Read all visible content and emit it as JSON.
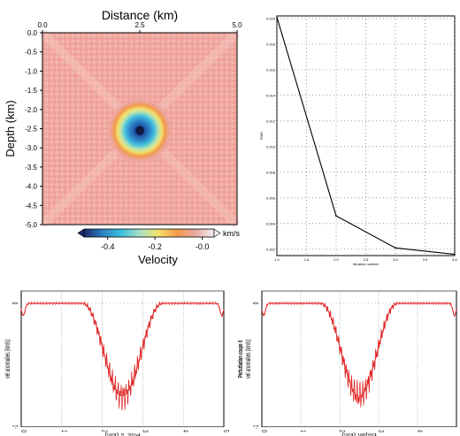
{
  "chart_data": [
    {
      "type": "heatmap",
      "title": "Distance (km)",
      "xlabel": "Distance (km)",
      "ylabel": "Depth (km)",
      "xlim": [
        0,
        5
      ],
      "ylim": [
        0,
        -5
      ],
      "x_ticks": [
        "0.0",
        "2.5",
        "5.0"
      ],
      "y_ticks": [
        "0.0",
        "-0.5",
        "-1.0",
        "-1.5",
        "-2.0",
        "-2.5",
        "-3.0",
        "-3.5",
        "-4.0",
        "-4.5",
        "-5.0"
      ],
      "anomaly_center": [
        2.5,
        -2.55
      ],
      "anomaly_min": -0.45,
      "colorbar": {
        "label": "Velocity",
        "unit": "km/s",
        "ticks": [
          "-0.4",
          "-0.2",
          "-0.0"
        ],
        "range": [
          -0.5,
          0.05
        ],
        "colors": [
          "#1a2a6c",
          "#2d7fc1",
          "#3cc0e0",
          "#a6e0c8",
          "#f5e26a",
          "#f59a4a",
          "#e8a8a0",
          "#f2f0f5"
        ]
      },
      "background_value": -0.02
    },
    {
      "type": "line",
      "xlabel": "Iteration number",
      "ylabel": "RMS",
      "xlim": [
        1,
        4
      ],
      "ylim": [
        0.0015,
        0.0202
      ],
      "x_ticks": [
        "1.0",
        "1.5",
        "2.0",
        "2.5",
        "3.0",
        "3.5",
        "4.0"
      ],
      "y_ticks": [
        "0.002",
        "0.004",
        "0.006",
        "0.008",
        "0.010",
        "0.012",
        "0.014",
        "0.016",
        "0.018",
        "0.020"
      ],
      "x": [
        1,
        2,
        3,
        4
      ],
      "y": [
        0.0201,
        0.0046,
        0.0021,
        0.0016
      ],
      "grid": true
    },
    {
      "type": "line",
      "xlabel": "Pos. x (km)",
      "ylabel": "vel anomalies (km/s)",
      "xlim": [
        0,
        5
      ],
      "ylim": [
        -1,
        0.1
      ],
      "x_ticks": [
        "0",
        "1",
        "2",
        "3",
        "4",
        "5"
      ],
      "grid": true,
      "series_color": "#e02020"
    },
    {
      "type": "line",
      "title": "Perturbation coupe X",
      "xlabel": "Depth (km)",
      "ylabel": "vel anomalies (km/s)",
      "xlim": [
        0,
        5
      ],
      "ylim": [
        -1,
        0.1
      ],
      "x_ticks": [
        "0",
        "1",
        "2",
        "3",
        "4"
      ],
      "grid": true,
      "series_color": "#e02020"
    }
  ]
}
